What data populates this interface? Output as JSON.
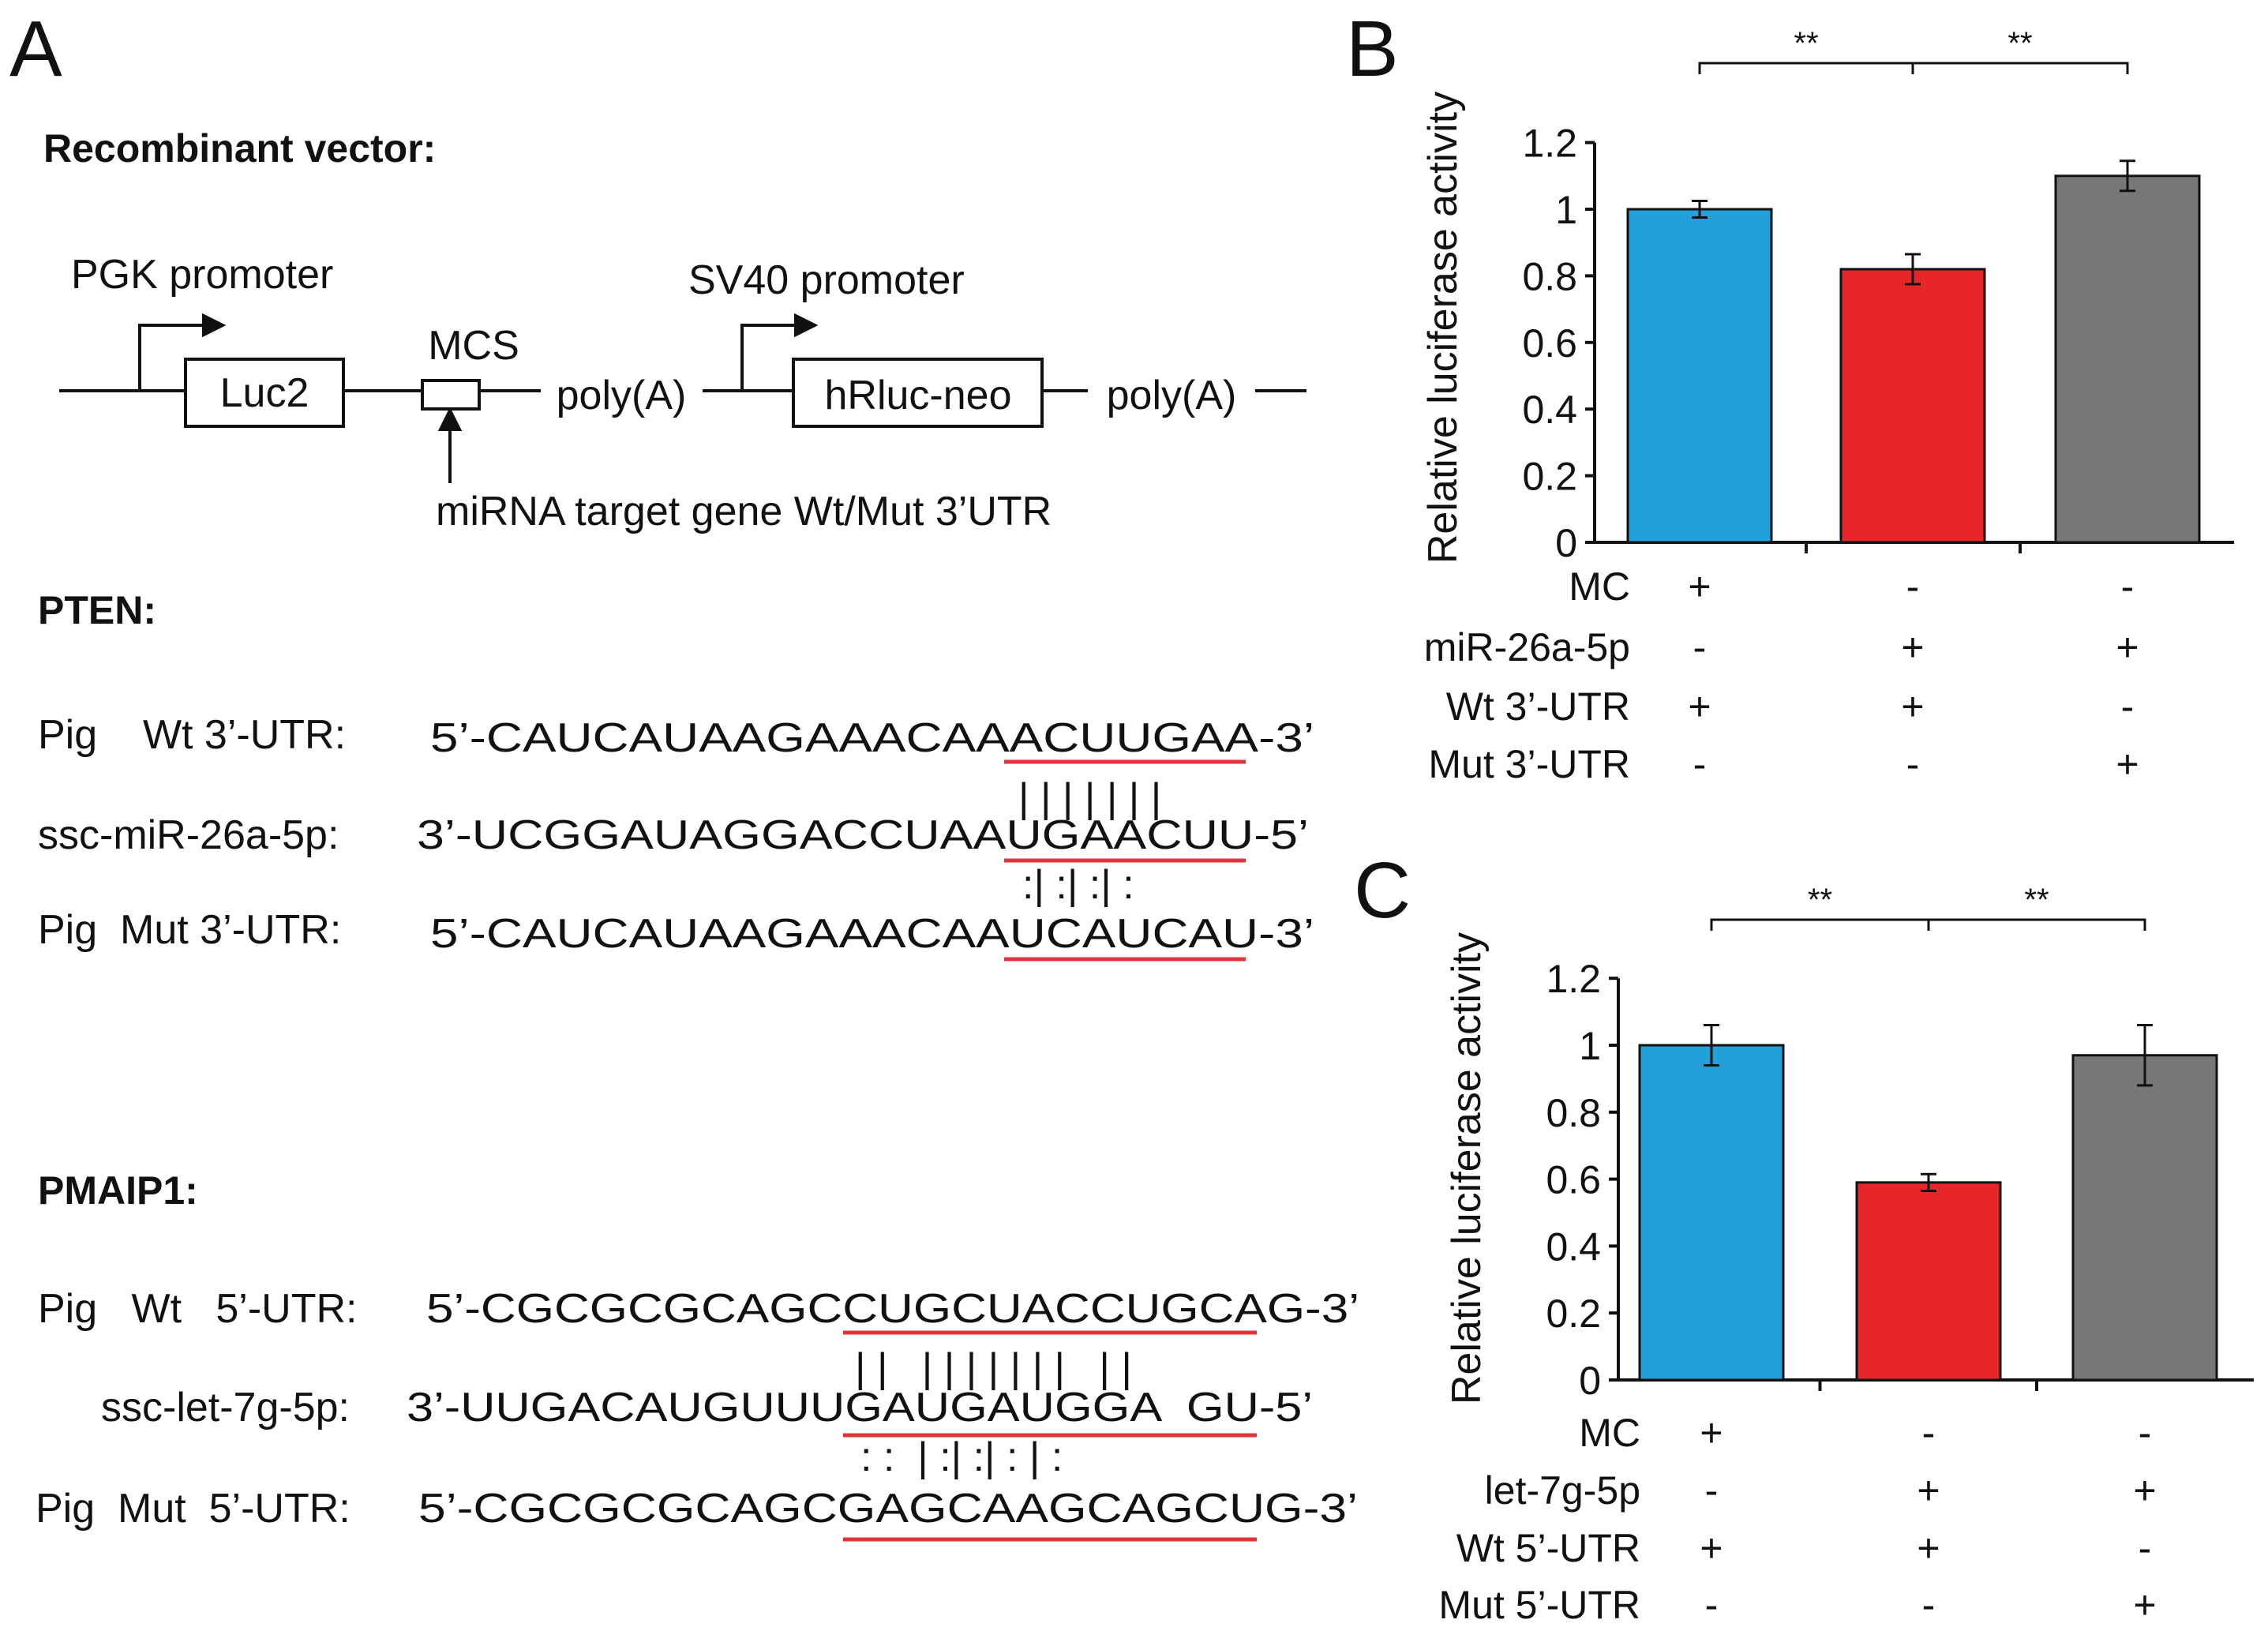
{
  "colors": {
    "blue": "#239fd9",
    "red": "#e7262a",
    "gray": "#777777",
    "underline": "#e0343a"
  },
  "panels": {
    "a": "A",
    "b": "B",
    "c": "C"
  },
  "vector": {
    "title": "Recombinant vector:",
    "pgk_promoter": "PGK promoter",
    "sv40_promoter": "SV40 promoter",
    "luc2": "Luc2",
    "mcs": "MCS",
    "polya_1": "poly(A)",
    "hrluc": "hRluc-neo",
    "polya_2": "poly(A)",
    "target": "miRNA target gene Wt/Mut 3’UTR"
  },
  "pten": {
    "title": "PTEN:",
    "wt_label": "Pig    Wt 3’-UTR:",
    "wt_seq": "5’-CAUCAUAAGAAACAAACUUGAA-3’",
    "mir_label": "ssc-miR-26a-5p:",
    "mir_seq": "3’-UCGGAUAGGACCUAAUGAACUU-5’",
    "mut_label": "Pig  Mut 3’-UTR:",
    "mut_seq": "5’-CAUCAUAAGAAACAAUCAUCAU-3’",
    "pairs_top": "| | | | | | |",
    "pairs_bottom": ":| :| :| :"
  },
  "pmaip1": {
    "title": "PMAIP1:",
    "wt_label": "Pig   Wt   5’-UTR:",
    "wt_seq": "5’-CGCGCGCAGCCUGCUACCUGCAG-3’",
    "mir_label": "ssc-let-7g-5p:",
    "mir_seq": "3’-UUGACAUGUUUGAUGAUGGA  GU-5’",
    "mut_label": "Pig  Mut  5’-UTR:",
    "mut_seq": "5’-CGCGCGCAGCGAGCAAGCAGCUG-3’",
    "pairs_top": "| |   | | | | | | |   | |",
    "pairs_bottom": ": :  | :| :| : | :"
  },
  "chart_data": [
    {
      "type": "bar",
      "panel": "B",
      "ylabel": "Relative luciferase activity",
      "ylim": [
        0,
        1.2
      ],
      "yticks": [
        "0",
        "0.2",
        "0.4",
        "0.6",
        "0.8",
        "1",
        "1.2"
      ],
      "values": [
        1.0,
        0.82,
        1.1
      ],
      "errors": [
        0.025,
        0.045,
        0.045
      ],
      "significance": [
        "**",
        "**"
      ],
      "conditions": [
        {
          "label": "MC",
          "marks": [
            "+",
            "-",
            "-"
          ]
        },
        {
          "label": "miR-26a-5p",
          "marks": [
            "-",
            "+",
            "+"
          ]
        },
        {
          "label": "Wt 3’-UTR",
          "marks": [
            "+",
            "+",
            "-"
          ]
        },
        {
          "label": "Mut 3’-UTR",
          "marks": [
            "-",
            "-",
            "+"
          ]
        }
      ]
    },
    {
      "type": "bar",
      "panel": "C",
      "ylabel": "Relative luciferase activity",
      "ylim": [
        0,
        1.2
      ],
      "yticks": [
        "0",
        "0.2",
        "0.4",
        "0.6",
        "0.8",
        "1",
        "1.2"
      ],
      "values": [
        1.0,
        0.59,
        0.97
      ],
      "errors": [
        0.06,
        0.025,
        0.09
      ],
      "significance": [
        "**",
        "**"
      ],
      "conditions": [
        {
          "label": "MC",
          "marks": [
            "+",
            "-",
            "-"
          ]
        },
        {
          "label": "let-7g-5p",
          "marks": [
            "-",
            "+",
            "+"
          ]
        },
        {
          "label": "Wt 5’-UTR",
          "marks": [
            "+",
            "+",
            "-"
          ]
        },
        {
          "label": "Mut 5’-UTR",
          "marks": [
            "-",
            "-",
            "+"
          ]
        }
      ]
    }
  ]
}
